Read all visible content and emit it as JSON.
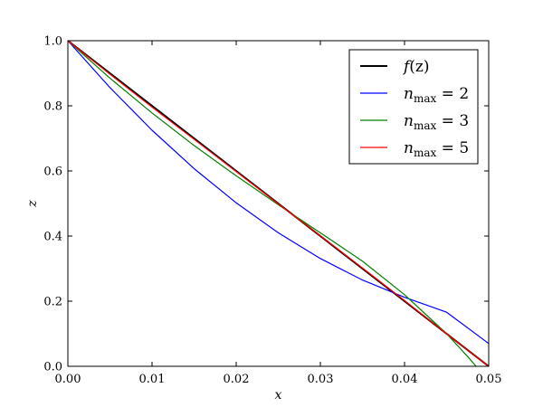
{
  "chart_data": {
    "type": "line",
    "xlabel": "x",
    "ylabel": "z",
    "xlim": [
      0,
      0.05
    ],
    "ylim": [
      0,
      1.0
    ],
    "x_ticks": [
      "0.00",
      "0.01",
      "0.02",
      "0.03",
      "0.04",
      "0.05"
    ],
    "y_ticks": [
      "0.0",
      "0.2",
      "0.4",
      "0.6",
      "0.8",
      "1.0"
    ],
    "x_tick_values": [
      0,
      0.01,
      0.02,
      0.03,
      0.04,
      0.05
    ],
    "y_tick_values": [
      0,
      0.2,
      0.4,
      0.6,
      0.8,
      1.0
    ],
    "legend_position": "top-right",
    "grid": false,
    "series": [
      {
        "name": "f(z)",
        "legend": {
          "base": "f",
          "rest": "(z)"
        },
        "color": "#000000",
        "stroke": 2,
        "points": [
          [
            0,
            1.0
          ],
          [
            0.005,
            0.9
          ],
          [
            0.01,
            0.8
          ],
          [
            0.015,
            0.7
          ],
          [
            0.02,
            0.6
          ],
          [
            0.025,
            0.5
          ],
          [
            0.03,
            0.4
          ],
          [
            0.035,
            0.3
          ],
          [
            0.04,
            0.2
          ],
          [
            0.045,
            0.1
          ],
          [
            0.05,
            0.0
          ]
        ]
      },
      {
        "name": "n_max = 2",
        "legend": {
          "base": "n",
          "sub": "max",
          "rest": " = 2"
        },
        "color": "#0000ff",
        "stroke": 1.2,
        "points": [
          [
            0,
            1.0
          ],
          [
            0.005,
            0.856
          ],
          [
            0.01,
            0.725
          ],
          [
            0.015,
            0.607
          ],
          [
            0.02,
            0.502
          ],
          [
            0.025,
            0.41
          ],
          [
            0.03,
            0.331
          ],
          [
            0.035,
            0.265
          ],
          [
            0.04,
            0.212
          ],
          [
            0.045,
            0.166
          ],
          [
            0.05,
            0.07
          ]
        ]
      },
      {
        "name": "n_max = 3",
        "legend": {
          "base": "n",
          "sub": "max",
          "rest": " = 3"
        },
        "color": "#008000",
        "stroke": 1.2,
        "points": [
          [
            0,
            1.0
          ],
          [
            0.005,
            0.885
          ],
          [
            0.01,
            0.778
          ],
          [
            0.015,
            0.678
          ],
          [
            0.02,
            0.585
          ],
          [
            0.025,
            0.496
          ],
          [
            0.03,
            0.41
          ],
          [
            0.035,
            0.323
          ],
          [
            0.04,
            0.22
          ],
          [
            0.045,
            0.1
          ],
          [
            0.0475,
            0.03
          ],
          [
            0.0485,
            0.0
          ]
        ]
      },
      {
        "name": "n_max = 5",
        "legend": {
          "base": "n",
          "sub": "max",
          "rest": " = 5"
        },
        "color": "#ff0000",
        "stroke": 1.2,
        "points": [
          [
            0,
            1.0
          ],
          [
            0.005,
            0.897
          ],
          [
            0.01,
            0.796
          ],
          [
            0.015,
            0.697
          ],
          [
            0.02,
            0.598
          ],
          [
            0.025,
            0.499
          ],
          [
            0.03,
            0.401
          ],
          [
            0.035,
            0.302
          ],
          [
            0.04,
            0.202
          ],
          [
            0.045,
            0.1
          ],
          [
            0.05,
            0.0
          ]
        ]
      }
    ]
  }
}
